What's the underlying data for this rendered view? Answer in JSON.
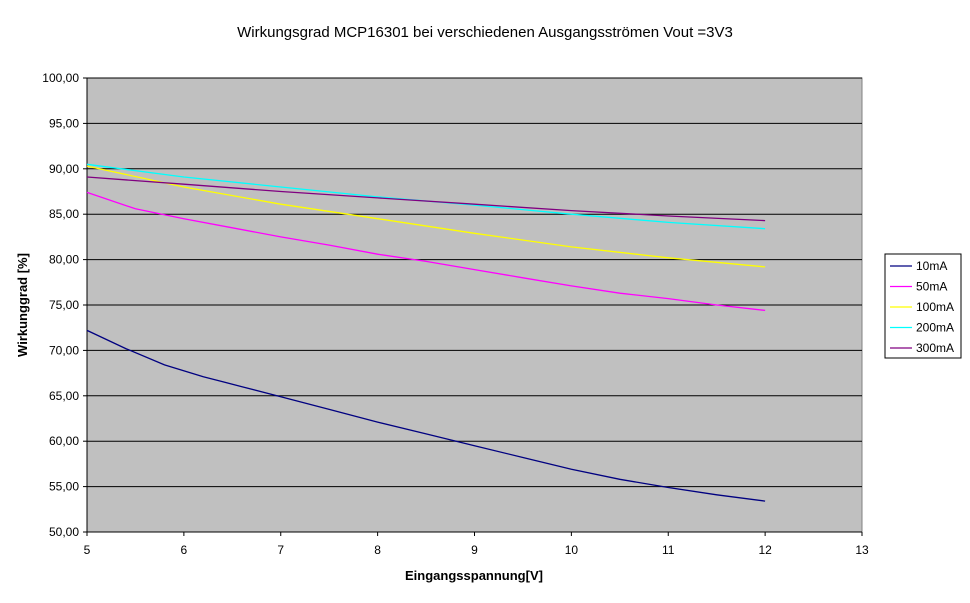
{
  "chart_data": {
    "type": "line",
    "title": "Wirkungsgrad MCP16301 bei verschiedenen Ausgangsströmen Vout =3V3",
    "xlabel": "Eingangsspannung[V]",
    "ylabel": "Wirkunggrad [%]",
    "xlim": [
      5,
      13
    ],
    "ylim": [
      50,
      100
    ],
    "x_ticks": [
      "5",
      "6",
      "7",
      "8",
      "9",
      "10",
      "11",
      "12",
      "13"
    ],
    "y_ticks": [
      "50,00",
      "55,00",
      "60,00",
      "65,00",
      "70,00",
      "75,00",
      "80,00",
      "85,00",
      "90,00",
      "95,00",
      "100,00"
    ],
    "grid": "horizontal major",
    "legend_position": "right",
    "plot_background": "#c0c0c0",
    "series": [
      {
        "name": "10mA",
        "color": "#000080",
        "x": [
          5,
          5.4,
          5.8,
          6.2,
          6.6,
          7,
          7.5,
          8,
          8.5,
          9,
          9.5,
          10,
          10.5,
          11,
          11.5,
          12
        ],
        "y": [
          72.2,
          70.2,
          68.4,
          67.1,
          66.0,
          64.9,
          63.5,
          62.1,
          60.8,
          59.5,
          58.2,
          56.9,
          55.8,
          54.9,
          54.1,
          53.4
        ]
      },
      {
        "name": "50mA",
        "color": "#ff00ff",
        "x": [
          5,
          5.5,
          6,
          6.5,
          7,
          7.5,
          8,
          8.5,
          9,
          9.5,
          10,
          10.5,
          11,
          11.5,
          12
        ],
        "y": [
          87.4,
          85.6,
          84.5,
          83.5,
          82.5,
          81.6,
          80.6,
          79.8,
          78.9,
          78.0,
          77.1,
          76.3,
          75.7,
          75.0,
          74.4
        ]
      },
      {
        "name": "100mA",
        "color": "#ffff00",
        "x": [
          5,
          6,
          7,
          8,
          9,
          10,
          11,
          12
        ],
        "y": [
          90.3,
          88.0,
          86.1,
          84.5,
          82.9,
          81.4,
          80.2,
          79.2
        ]
      },
      {
        "name": "200mA",
        "color": "#00ffff",
        "x": [
          5,
          6,
          7,
          8,
          9,
          10,
          11,
          12
        ],
        "y": [
          90.5,
          89.1,
          88.0,
          86.9,
          86.0,
          85.0,
          84.1,
          83.4
        ]
      },
      {
        "name": "300mA",
        "color": "#800080",
        "x": [
          5,
          6,
          7,
          8,
          9,
          10,
          11,
          12
        ],
        "y": [
          89.1,
          88.3,
          87.5,
          86.8,
          86.1,
          85.4,
          84.8,
          84.3
        ]
      }
    ]
  }
}
